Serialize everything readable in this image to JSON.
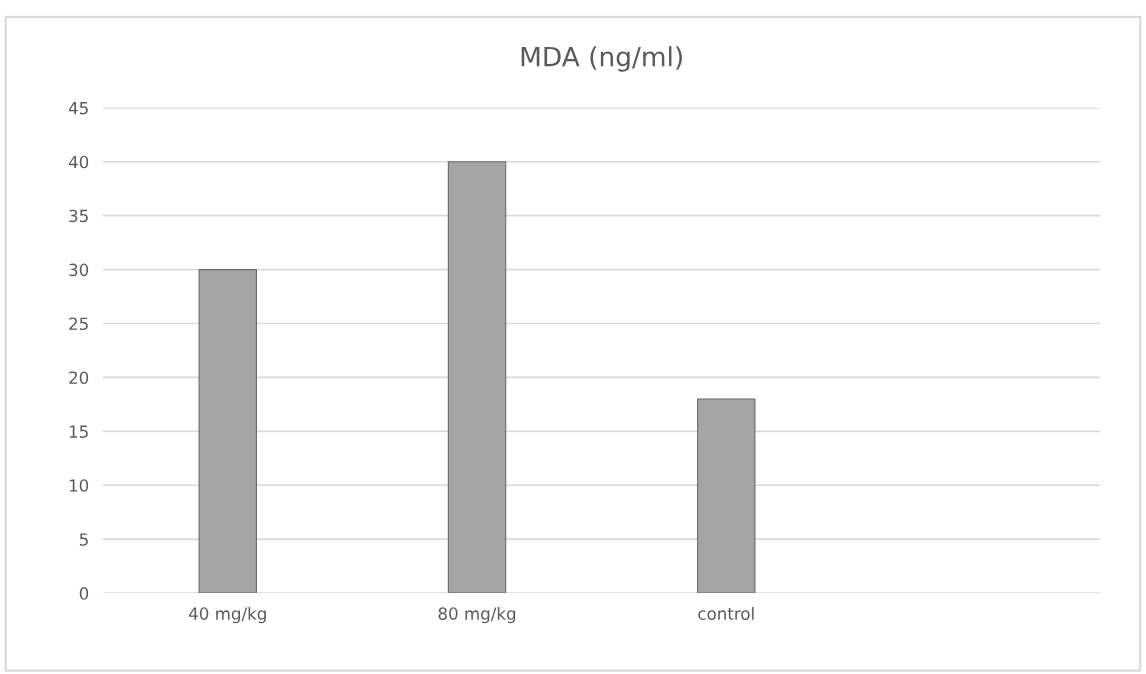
{
  "chart_data": {
    "type": "bar",
    "title": "MDA (ng/ml)",
    "categories": [
      "40 mg/kg",
      "80 mg/kg",
      "control",
      null
    ],
    "values": [
      30,
      40,
      18,
      null
    ],
    "color": "#a5a5a5",
    "ylim": [
      0,
      45
    ],
    "yticks": [
      0,
      5,
      10,
      15,
      20,
      25,
      30,
      35,
      40,
      45
    ],
    "grid": "y",
    "legend": false
  }
}
